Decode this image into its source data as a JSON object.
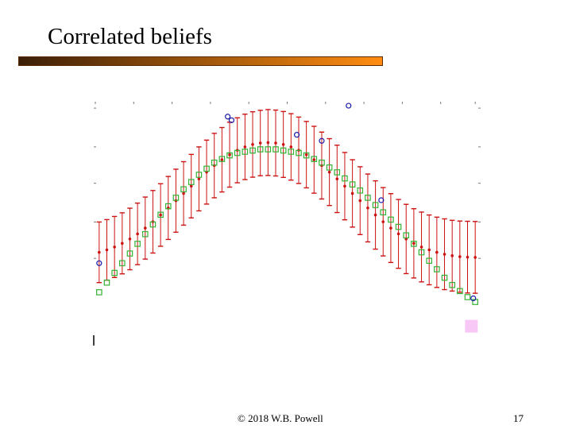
{
  "slide": {
    "title": "Correlated beliefs",
    "title_bar_colors": [
      "#3b1f05",
      "#ff8c10"
    ],
    "footer": {
      "copyright": "© 2018 W.B. Powell",
      "page_number": "17"
    }
  },
  "chart_data": {
    "type": "scatter",
    "title": "",
    "xlabel": "",
    "ylabel": "",
    "xlim": [
      0,
      1
    ],
    "ylim": [
      0,
      1
    ],
    "grid": false,
    "legend": "none",
    "series": [
      {
        "role": "truth",
        "marker": "circle",
        "color": "#1a1aa8",
        "points": [
          [
            0.01,
            0.34
          ],
          [
            0.345,
            0.945
          ],
          [
            0.355,
            0.93
          ],
          [
            0.66,
            0.99
          ],
          [
            0.525,
            0.87
          ],
          [
            0.59,
            0.845
          ],
          [
            0.745,
            0.6
          ],
          [
            0.985,
            0.195
          ]
        ]
      },
      {
        "role": "confidence-bars",
        "marker": "errorbar",
        "color": "#cc1111",
        "x": [
          0.01,
          0.03,
          0.05,
          0.07,
          0.09,
          0.11,
          0.13,
          0.15,
          0.17,
          0.19,
          0.21,
          0.23,
          0.25,
          0.27,
          0.29,
          0.31,
          0.33,
          0.35,
          0.37,
          0.39,
          0.41,
          0.43,
          0.45,
          0.47,
          0.49,
          0.51,
          0.53,
          0.55,
          0.57,
          0.59,
          0.61,
          0.63,
          0.65,
          0.67,
          0.69,
          0.71,
          0.73,
          0.75,
          0.77,
          0.79,
          0.81,
          0.83,
          0.85,
          0.87,
          0.89,
          0.91,
          0.93,
          0.95,
          0.97,
          0.99
        ],
        "mean": [
          0.385,
          0.395,
          0.407,
          0.422,
          0.44,
          0.461,
          0.485,
          0.511,
          0.539,
          0.568,
          0.598,
          0.628,
          0.658,
          0.688,
          0.716,
          0.743,
          0.767,
          0.788,
          0.806,
          0.82,
          0.83,
          0.836,
          0.838,
          0.836,
          0.83,
          0.82,
          0.806,
          0.788,
          0.767,
          0.743,
          0.716,
          0.688,
          0.658,
          0.628,
          0.598,
          0.568,
          0.539,
          0.511,
          0.485,
          0.461,
          0.44,
          0.422,
          0.407,
          0.395,
          0.385,
          0.377,
          0.371,
          0.367,
          0.365,
          0.364
        ],
        "half_width": [
          0.125,
          0.125,
          0.126,
          0.126,
          0.127,
          0.127,
          0.128,
          0.129,
          0.129,
          0.13,
          0.13,
          0.131,
          0.131,
          0.132,
          0.132,
          0.133,
          0.133,
          0.134,
          0.134,
          0.135,
          0.135,
          0.135,
          0.136,
          0.136,
          0.136,
          0.137,
          0.137,
          0.137,
          0.138,
          0.138,
          0.138,
          0.139,
          0.139,
          0.139,
          0.14,
          0.14,
          0.141,
          0.141,
          0.142,
          0.142,
          0.143,
          0.143,
          0.144,
          0.144,
          0.145,
          0.146,
          0.146,
          0.147,
          0.148,
          0.148
        ]
      },
      {
        "role": "estimate",
        "marker": "square",
        "color": "#33b233",
        "x": [
          0.01,
          0.03,
          0.05,
          0.07,
          0.09,
          0.11,
          0.13,
          0.15,
          0.17,
          0.19,
          0.21,
          0.23,
          0.25,
          0.27,
          0.29,
          0.31,
          0.33,
          0.35,
          0.37,
          0.39,
          0.41,
          0.43,
          0.45,
          0.47,
          0.49,
          0.51,
          0.53,
          0.55,
          0.57,
          0.59,
          0.61,
          0.63,
          0.65,
          0.67,
          0.69,
          0.71,
          0.73,
          0.75,
          0.77,
          0.79,
          0.81,
          0.83,
          0.85,
          0.87,
          0.89,
          0.91,
          0.93,
          0.95,
          0.97,
          0.99
        ],
        "y": [
          0.22,
          0.26,
          0.3,
          0.34,
          0.38,
          0.42,
          0.46,
          0.5,
          0.54,
          0.575,
          0.61,
          0.645,
          0.675,
          0.705,
          0.73,
          0.755,
          0.77,
          0.785,
          0.795,
          0.8,
          0.805,
          0.81,
          0.81,
          0.81,
          0.805,
          0.8,
          0.795,
          0.785,
          0.77,
          0.755,
          0.735,
          0.715,
          0.69,
          0.665,
          0.64,
          0.61,
          0.58,
          0.55,
          0.52,
          0.49,
          0.455,
          0.42,
          0.385,
          0.35,
          0.315,
          0.28,
          0.25,
          0.225,
          0.2,
          0.18
        ]
      }
    ],
    "extra_marks": [
      {
        "marker": "filled-square",
        "color": "#f7c8f5",
        "x": 0.98,
        "y": 0.08
      }
    ]
  }
}
